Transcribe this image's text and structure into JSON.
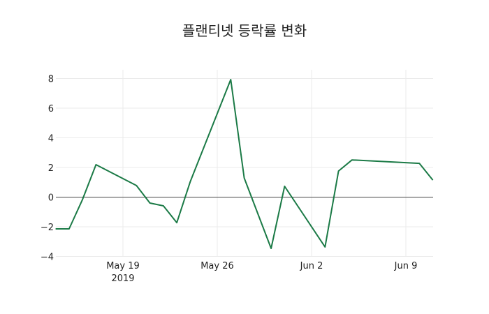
{
  "chart_data": {
    "type": "line",
    "title": "플랜티넷 등락률 변화",
    "xlabel": "",
    "ylabel": "",
    "ylim": [
      -4.3,
      8.5
    ],
    "grid": true,
    "legend": null,
    "line_color": "#1b7a46",
    "x_tick_labels": [
      {
        "date": "2019-05-19",
        "label": "May 19",
        "sublabel": "2019"
      },
      {
        "date": "2019-05-26",
        "label": "May 26",
        "sublabel": ""
      },
      {
        "date": "2019-06-02",
        "label": "Jun 2",
        "sublabel": ""
      },
      {
        "date": "2019-06-09",
        "label": "Jun 9",
        "sublabel": ""
      }
    ],
    "y_ticks": [
      -4,
      -2,
      0,
      2,
      4,
      6,
      8
    ],
    "x": [
      "2019-05-14",
      "2019-05-15",
      "2019-05-16",
      "2019-05-17",
      "2019-05-20",
      "2019-05-21",
      "2019-05-22",
      "2019-05-23",
      "2019-05-24",
      "2019-05-27",
      "2019-05-28",
      "2019-05-30",
      "2019-05-31",
      "2019-06-03",
      "2019-06-04",
      "2019-06-05",
      "2019-06-10",
      "2019-06-11"
    ],
    "series": [
      {
        "name": "등락률",
        "values": [
          -2.14,
          -2.14,
          -0.16,
          2.19,
          0.78,
          -0.4,
          -0.59,
          -1.72,
          1.05,
          7.93,
          1.29,
          -3.46,
          0.73,
          -3.36,
          1.76,
          2.51,
          2.28,
          1.15
        ]
      }
    ]
  }
}
